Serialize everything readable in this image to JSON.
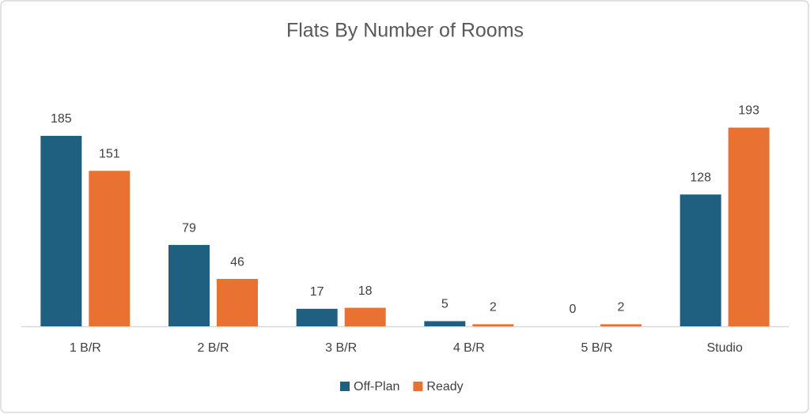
{
  "chart_data": {
    "type": "bar",
    "title": "Flats By Number of Rooms",
    "categories": [
      "1 B/R",
      "2 B/R",
      "3 B/R",
      "4 B/R",
      "5 B/R",
      "Studio"
    ],
    "series": [
      {
        "name": "Off-Plan",
        "color": "#1f5f80",
        "values": [
          185,
          79,
          17,
          5,
          0,
          128
        ]
      },
      {
        "name": "Ready",
        "color": "#e97132",
        "values": [
          151,
          46,
          18,
          2,
          2,
          193
        ]
      }
    ],
    "legend": "bottom"
  }
}
